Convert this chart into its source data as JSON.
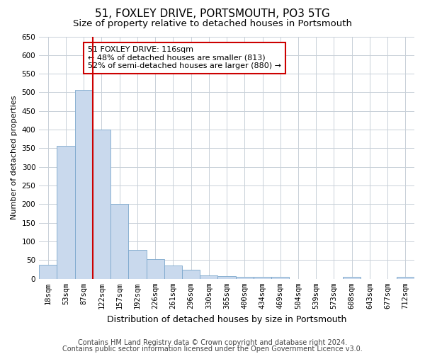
{
  "title1": "51, FOXLEY DRIVE, PORTSMOUTH, PO3 5TG",
  "title2": "Size of property relative to detached houses in Portsmouth",
  "xlabel": "Distribution of detached houses by size in Portsmouth",
  "ylabel": "Number of detached properties",
  "categories": [
    "18sqm",
    "53sqm",
    "87sqm",
    "122sqm",
    "157sqm",
    "192sqm",
    "226sqm",
    "261sqm",
    "296sqm",
    "330sqm",
    "365sqm",
    "400sqm",
    "434sqm",
    "469sqm",
    "504sqm",
    "539sqm",
    "573sqm",
    "608sqm",
    "643sqm",
    "677sqm",
    "712sqm"
  ],
  "values": [
    37,
    357,
    507,
    400,
    200,
    78,
    52,
    35,
    25,
    10,
    8,
    5,
    5,
    5,
    0,
    0,
    0,
    5,
    0,
    0,
    5
  ],
  "bar_color": "#c9d9ed",
  "bar_edge_color": "#7ba7cc",
  "vline_color": "#cc0000",
  "vline_x": 2.5,
  "ylim": [
    0,
    650
  ],
  "yticks": [
    0,
    50,
    100,
    150,
    200,
    250,
    300,
    350,
    400,
    450,
    500,
    550,
    600,
    650
  ],
  "annotation_text": "51 FOXLEY DRIVE: 116sqm\n← 48% of detached houses are smaller (813)\n52% of semi-detached houses are larger (880) →",
  "annotation_box_facecolor": "#ffffff",
  "annotation_box_edgecolor": "#cc0000",
  "footer1": "Contains HM Land Registry data © Crown copyright and database right 2024.",
  "footer2": "Contains public sector information licensed under the Open Government Licence v3.0.",
  "background_color": "#ffffff",
  "grid_color": "#c8d0d8",
  "title1_fontsize": 11,
  "title2_fontsize": 9.5,
  "tick_fontsize": 7.5,
  "ylabel_fontsize": 8,
  "xlabel_fontsize": 9,
  "annot_fontsize": 8,
  "footer_fontsize": 7
}
